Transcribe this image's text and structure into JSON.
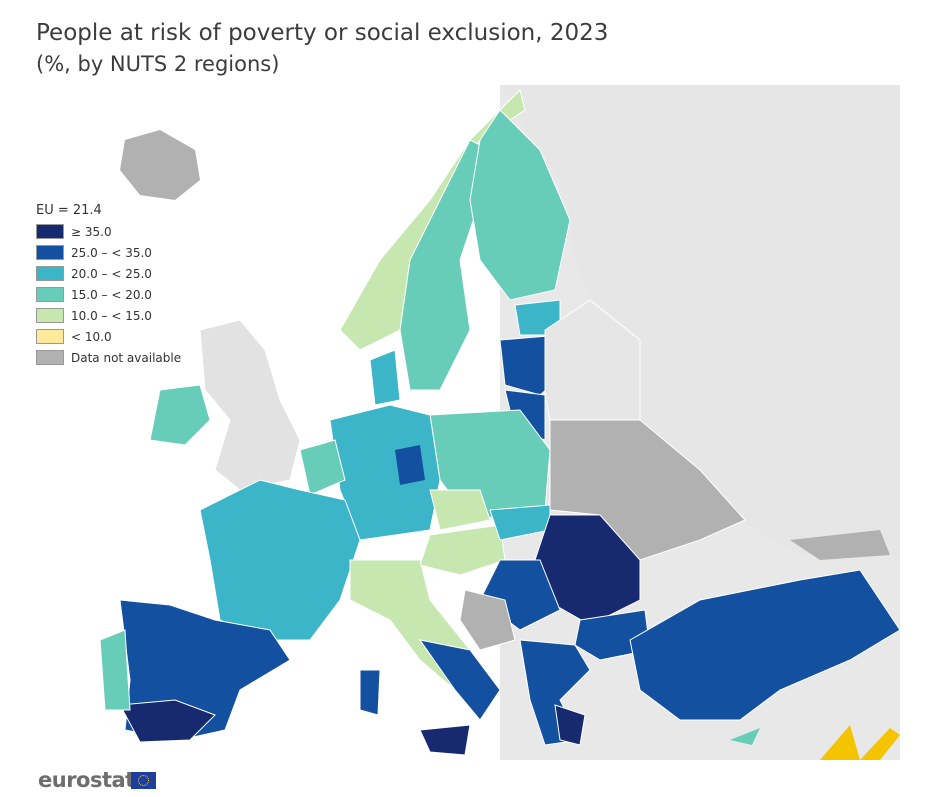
{
  "title": "People at risk of poverty or social exclusion, 2023",
  "subtitle": "(%, by NUTS 2 regions)",
  "legend": {
    "eu_value": "EU = 21.4",
    "classes": [
      {
        "label": "≥ 35.0",
        "color": "#172a70"
      },
      {
        "label": "25.0 – < 35.0",
        "color": "#1450a0"
      },
      {
        "label": "20.0 – < 25.0",
        "color": "#3db5c9"
      },
      {
        "label": "15.0 – < 20.0",
        "color": "#67cdb9"
      },
      {
        "label": "10.0 – < 15.0",
        "color": "#c6e8b0"
      },
      {
        "label": "< 10.0",
        "color": "#fde99a"
      },
      {
        "label": "Data not available",
        "color": "#b1b1b1"
      }
    ]
  },
  "colors": {
    "non_eu_land": "#e6e6e6",
    "sea": "#ffffff"
  },
  "logo": {
    "text": "eurostat"
  }
}
